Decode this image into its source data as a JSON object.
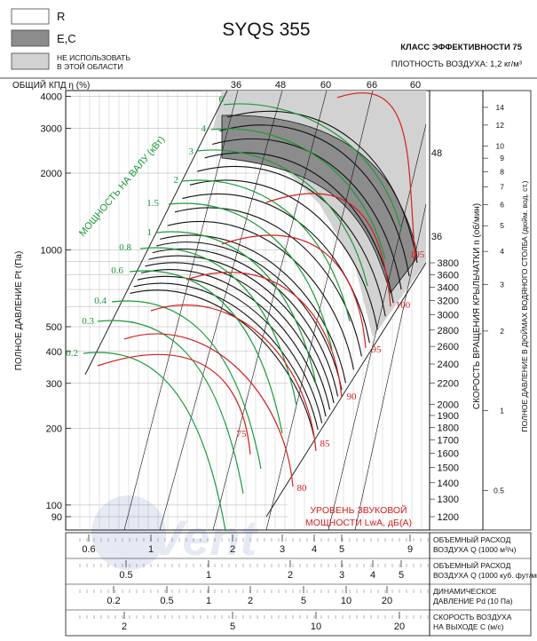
{
  "header": {
    "model": "SYQS 355",
    "efficiency_class": "КЛАСС ЭФФЕКТИВНОСТИ 75",
    "air_density": "ПЛОТНОСТЬ ВОЗДУХА: 1,2 кг/м³"
  },
  "legend": {
    "items": [
      {
        "label": "R",
        "color": "#ffffff"
      },
      {
        "label": "E,C",
        "color": "#8c8c8c"
      },
      {
        "label": "НЕ ИСПОЛЬЗОВАТЬ",
        "label2": "В ЭТОЙ ОБЛАСТИ",
        "color": "#d2d2d2"
      }
    ]
  },
  "chart_data": {
    "type": "line",
    "title": "SYQS 355",
    "efficiency_label": "ОБЩИЙ КПД η (%)",
    "efficiency_ticks": [
      "36",
      "48",
      "60",
      "66",
      "60"
    ],
    "efficiency_right_ticks": [
      "48",
      "36"
    ],
    "ylabel": "ПОЛНОЕ ДАВЛЕНИЕ Pt (Па)",
    "y_scale": "log",
    "ylim": [
      90,
      4000
    ],
    "y_ticks": [
      90,
      100,
      200,
      300,
      400,
      500,
      1000,
      2000,
      3000,
      4000
    ],
    "speed_label": "СКОРОСТЬ ВРАЩЕНИЯ КРЫЛЬЧАТКИ n (об/мин)",
    "speed_ticks": [
      1200,
      1300,
      1400,
      1500,
      1600,
      1700,
      1800,
      1900,
      2000,
      2200,
      2400,
      2600,
      2800,
      3000,
      3200,
      3400,
      3600,
      3800
    ],
    "inwg_label": "ПОЛНОЕ ДАВЛЕНИЕ В ДЮЙМАХ ВОДЯНОГО СТОЛБА (дюйм. вод. ст.)",
    "inwg_ticks": [
      "14",
      "12",
      "10",
      "9",
      "8",
      "7",
      "6",
      "5",
      "4",
      "3",
      "2",
      "1",
      "0.5"
    ],
    "power_label": "МОЩНОСТЬ НА ВАЛУ (кВт)",
    "power_ticks": [
      "6",
      "4",
      "3",
      "2",
      "1.5",
      "1",
      "0.8",
      "0.6",
      "0.4",
      "0.3",
      "0.2"
    ],
    "sound_label": "УРОВЕНЬ ЗВУКОВОЙ",
    "sound_label2": "МОЩНОСТИ LwA, дБ(A)",
    "sound_ticks": [
      "75",
      "80",
      "85",
      "90",
      "95",
      "100",
      "105"
    ],
    "x_axes": [
      {
        "label": "ОБЪЕМНЫЙ РАСХОД",
        "label2": "ВОЗДУХА Q (1000 м³/ч)",
        "ticks": [
          "0.6",
          "1",
          "2",
          "3",
          "4",
          "5",
          "9"
        ]
      },
      {
        "label": "ОБЪЕМНЫЙ РАСХОД",
        "label2": "ВОЗДУХА Q (1000 куб. фут/мин)",
        "ticks": [
          "0.5",
          "1",
          "2",
          "3",
          "4",
          "5"
        ]
      },
      {
        "label": "ДИНАМИЧЕСКОЕ",
        "label2": "ДАВЛЕНИЕ Pd (10 Па)",
        "ticks": [
          "0.2",
          "0.5",
          "1",
          "2",
          "5",
          "10",
          "20"
        ]
      },
      {
        "label": "СКОРОСТЬ ВОЗДУХА",
        "label2": "НА ВЫХОДЕ C (м/с)",
        "ticks": [
          "2",
          "5",
          "10",
          "20"
        ]
      }
    ],
    "grid": true,
    "speed_curves_rpm": [
      1200,
      1300,
      1400,
      1500,
      1600,
      1700,
      1800,
      1900,
      2000,
      2200,
      2400,
      2600,
      2800,
      3000,
      3200,
      3400,
      3600,
      3800
    ],
    "colors": {
      "speed": "#111111",
      "power": "#1a9a3a",
      "sound": "#d42020",
      "ec_zone": "#8c8c8c",
      "forbidden_zone": "#d2d2d2"
    }
  }
}
